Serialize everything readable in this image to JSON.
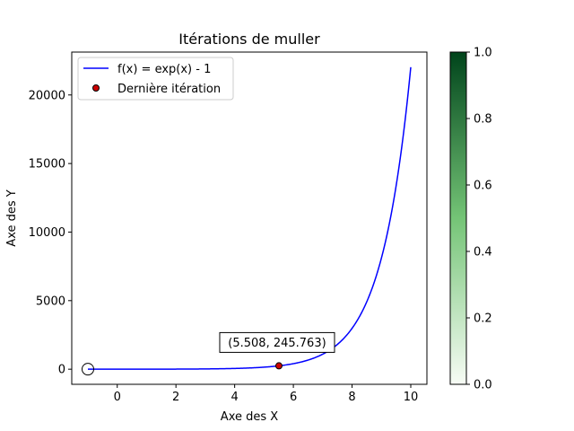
{
  "chart_data": {
    "type": "line",
    "title": "Itérations de muller",
    "xlabel": "Axe des X",
    "ylabel": "Axe des Y",
    "xlim": [
      -1.55,
      10.55
    ],
    "ylim": [
      -1102.5,
      23128
    ],
    "x_ticks": [
      0,
      2,
      4,
      6,
      8,
      10
    ],
    "y_ticks": [
      0,
      5000,
      10000,
      15000,
      20000
    ],
    "grid": false,
    "legend_position": "upper-left",
    "series": [
      {
        "name": "f(x) = exp(x) - 1",
        "function": "exp(x) - 1",
        "x_range": [
          -1,
          10
        ],
        "color": "#0000ff"
      }
    ],
    "points": [
      {
        "name": "Dernière itération",
        "x": 5.508,
        "y": 245.763,
        "color": "#cc0000"
      }
    ],
    "start_marker": {
      "x": -1,
      "y": -0.632
    },
    "annotation": {
      "text": "(5.508, 245.763)",
      "x": 5.508,
      "y": 245.763
    },
    "colorbar": {
      "range": [
        0,
        1
      ],
      "ticks": [
        "0.0",
        "0.2",
        "0.4",
        "0.6",
        "0.8",
        "1.0"
      ],
      "colormap": "Greens",
      "color_low": "#f7fcf5",
      "color_mid": "#74c476",
      "color_high": "#00441b"
    }
  }
}
